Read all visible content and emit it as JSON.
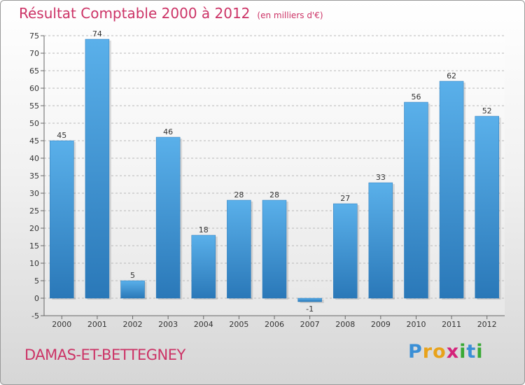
{
  "header": {
    "title": "Résultat Comptable 2000 à 2012",
    "unit": "(en milliers d'€)"
  },
  "footer": {
    "place": "DAMAS-ET-BETTEGNEY",
    "logo_letters": [
      "P",
      "r",
      "o",
      "x",
      "i",
      "t",
      "i"
    ],
    "logo_colors": [
      "#3a8fd6",
      "#e8a21a",
      "#e8a21a",
      "#d4237a",
      "#39a935",
      "#3a8fd6",
      "#39a935"
    ]
  },
  "colors": {
    "bar_top": "#5ab0ea",
    "bar_bottom": "#2a78b8",
    "title": "#cc3366"
  },
  "chart_data": {
    "type": "bar",
    "categories": [
      "2000",
      "2001",
      "2002",
      "2003",
      "2004",
      "2005",
      "2006",
      "2007",
      "2008",
      "2009",
      "2010",
      "2011",
      "2012"
    ],
    "values": [
      45,
      74,
      5,
      46,
      18,
      28,
      28,
      -1,
      27,
      33,
      56,
      62,
      52
    ],
    "labels": [
      "45",
      "74",
      "5",
      "46",
      "18",
      "28",
      "28",
      "-1",
      "27",
      "33",
      "56",
      "62",
      "52"
    ],
    "yticks": [
      "-5",
      "0",
      "5",
      "10",
      "15",
      "20",
      "25",
      "30",
      "35",
      "40",
      "45",
      "50",
      "55",
      "60",
      "65",
      "70",
      "75"
    ],
    "ylim": [
      -5,
      75
    ],
    "grid": true
  }
}
